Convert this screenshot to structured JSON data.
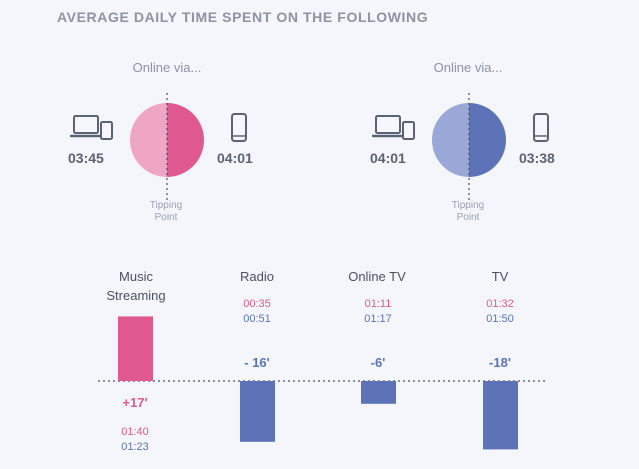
{
  "title": "AVERAGE DAILY TIME SPENT ON THE FOLLOWING",
  "colors": {
    "pink": "#e0598e",
    "pink_light": "#eea6c4",
    "blue": "#5c73b8",
    "blue_light": "#9aa8d8",
    "text": "#5b6274"
  },
  "chart_data": [
    {
      "type": "pie",
      "caption": "Online via...",
      "divider_label": "Tipping Point",
      "slices": [
        {
          "device": "laptop-icon",
          "time": "03:45",
          "minutes": 225
        },
        {
          "device": "phone-icon",
          "time": "04:01",
          "minutes": 241
        }
      ]
    },
    {
      "type": "pie",
      "caption": "Online via...",
      "divider_label": "Tipping Point",
      "slices": [
        {
          "device": "laptop-icon",
          "time": "04:01",
          "minutes": 241
        },
        {
          "device": "phone-icon",
          "time": "03:38",
          "minutes": 218
        }
      ]
    },
    {
      "type": "bar",
      "categories": [
        "Music Streaming",
        "Radio",
        "Online TV",
        "TV"
      ],
      "values": [
        17,
        -16,
        -6,
        -18
      ],
      "value_labels": [
        "+17'",
        "- 16'",
        "-6'",
        "-18'"
      ],
      "series_times": [
        {
          "color": "pink",
          "values": [
            "01:40",
            "00:35",
            "01:11",
            "01:32"
          ]
        },
        {
          "color": "blue",
          "values": [
            "01:23",
            "00:51",
            "01:17",
            "01:50"
          ]
        }
      ]
    }
  ]
}
